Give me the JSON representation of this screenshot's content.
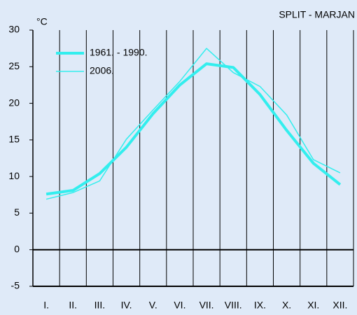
{
  "chart_data": {
    "type": "line",
    "title": "SPLIT - MARJAN",
    "ylabel": "°C",
    "categories": [
      "I.",
      "II.",
      "III.",
      "IV.",
      "V.",
      "VI.",
      "VII.",
      "VIII.",
      "IX.",
      "X.",
      "XI.",
      "XII."
    ],
    "series": [
      {
        "name": "1961. - 1990.",
        "color": "#33eeee",
        "linewidth": 4,
        "values": [
          7.6,
          8.1,
          10.4,
          14.0,
          18.6,
          22.5,
          25.4,
          24.9,
          21.2,
          16.3,
          11.8,
          8.9
        ]
      },
      {
        "name": "2006.",
        "color": "#33eeee",
        "linewidth": 1.5,
        "values": [
          6.9,
          7.8,
          9.4,
          15.1,
          19.1,
          23.0,
          27.5,
          24.2,
          22.3,
          18.4,
          12.3,
          10.5
        ]
      }
    ],
    "ylim": [
      -5,
      30
    ],
    "yticks": [
      -5,
      0,
      5,
      10,
      15,
      20,
      25,
      30
    ],
    "grid": "x",
    "legend": "upper left"
  }
}
